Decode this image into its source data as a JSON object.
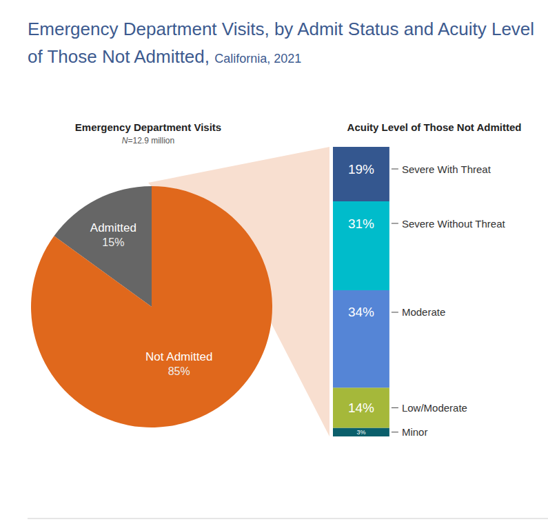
{
  "title": "Emergency Department Visits, by Admit Status and Acuity Level of Those Not Admitted,",
  "subtitle": "California, 2021",
  "chart_data": [
    {
      "type": "pie",
      "title": "Emergency Department Visits",
      "subtitle": "N=12.9 million",
      "categories": [
        "Admitted",
        "Not Admitted"
      ],
      "values": [
        15,
        85
      ],
      "value_labels": [
        "15%",
        "85%"
      ],
      "colors": [
        "#666666",
        "#e0681c"
      ],
      "data_labels": true
    },
    {
      "type": "bar",
      "title": "Acuity Level of Those Not Admitted",
      "categories": [
        null
      ],
      "stacked": true,
      "ylim": [
        0,
        101
      ],
      "tick_labels": false,
      "data_labels": true,
      "series": [
        {
          "name": "Severe With Threat",
          "color": "#34578f",
          "values": [
            19
          ],
          "value_labels": [
            "19%"
          ]
        },
        {
          "name": "Severe Without Threat",
          "color": "#00bccb",
          "values": [
            31
          ],
          "value_labels": [
            "31%"
          ]
        },
        {
          "name": "Moderate",
          "color": "#5585d6",
          "values": [
            34
          ],
          "value_labels": [
            "34%"
          ]
        },
        {
          "name": "Low/Moderate",
          "color": "#a5b83a",
          "values": [
            14
          ],
          "value_labels": [
            "14%"
          ]
        },
        {
          "name": "Minor",
          "color": "#0b5f6b",
          "values": [
            3
          ],
          "value_labels": [
            "3%"
          ]
        }
      ]
    }
  ]
}
